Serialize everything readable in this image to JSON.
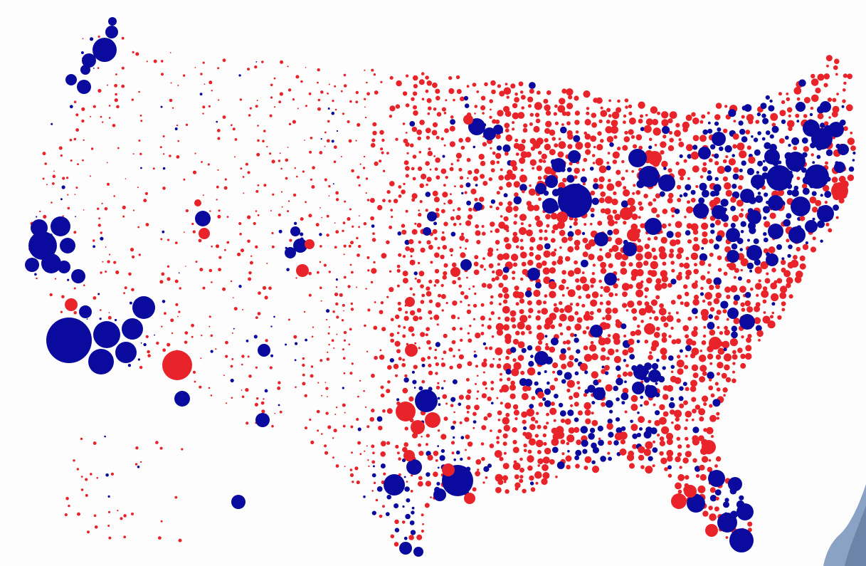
{
  "map": {
    "type": "county bubble map (US)",
    "legend": "none",
    "colors": {
      "blue": "#0a0a9e",
      "red": "#e8242a",
      "background": "#fdfdfd",
      "presenter_shirt": "#8aa3c4"
    }
  },
  "presenter": {
    "icon": "person-partial-icon"
  }
}
